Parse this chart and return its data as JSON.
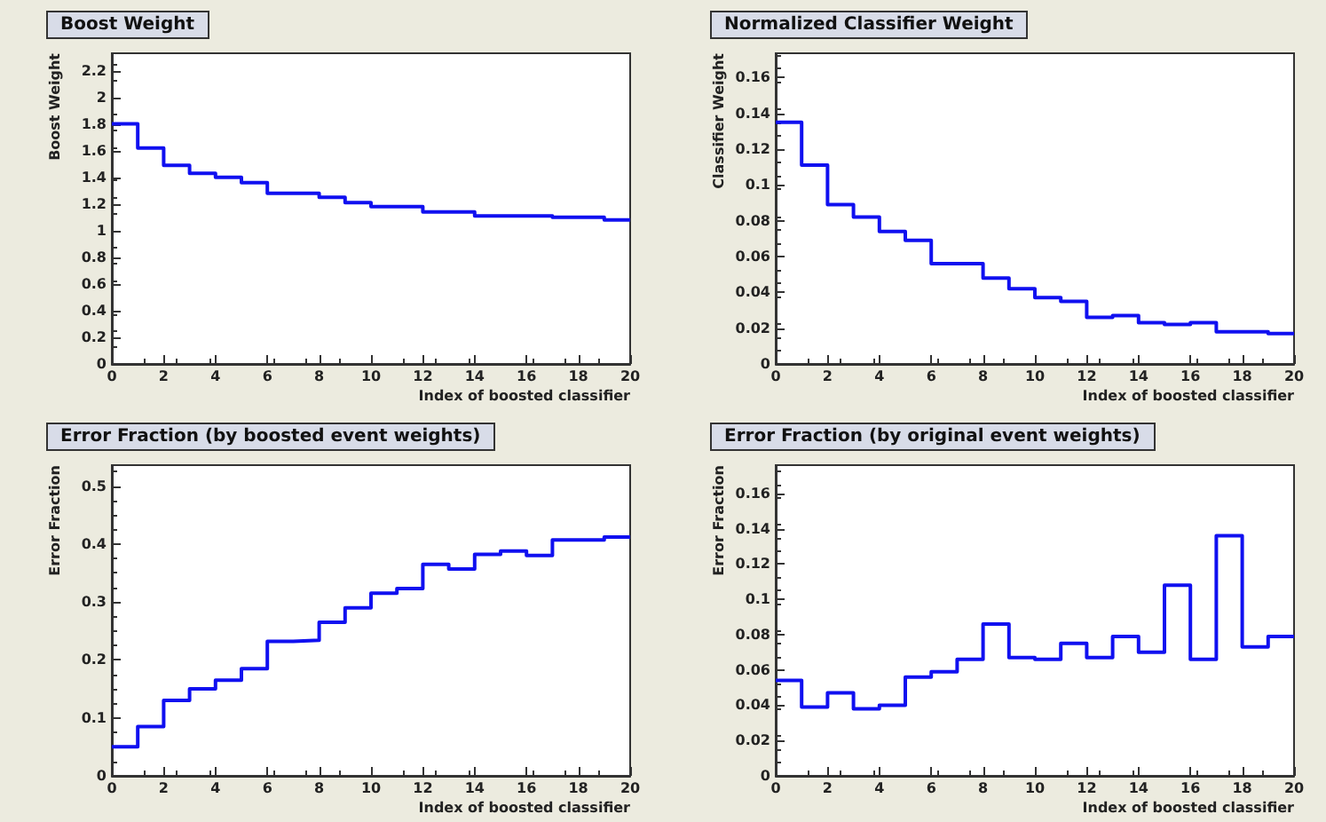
{
  "chart_data": [
    {
      "type": "histogram",
      "title": "Boost Weight",
      "ylabel": "Boost Weight",
      "xlabel": "Index of boosted classifier",
      "color": "#1010f0",
      "bins": [
        0,
        1,
        2,
        3,
        4,
        5,
        6,
        7,
        8,
        9,
        10,
        11,
        12,
        13,
        14,
        15,
        16,
        17,
        18,
        19,
        20
      ],
      "values": [
        1.8,
        1.62,
        1.49,
        1.43,
        1.4,
        1.36,
        1.28,
        1.28,
        1.25,
        1.21,
        1.18,
        1.18,
        1.14,
        1.14,
        1.11,
        1.11,
        1.11,
        1.1,
        1.1,
        1.08
      ],
      "xlim": [
        0,
        20
      ],
      "xticks": [
        0,
        2,
        4,
        6,
        8,
        10,
        12,
        14,
        16,
        18,
        20
      ],
      "ylim": [
        0,
        2.33
      ],
      "yticks": [
        0,
        0.2,
        0.4,
        0.6,
        0.8,
        1,
        1.2,
        1.4,
        1.6,
        1.8,
        2,
        2.2
      ]
    },
    {
      "type": "histogram",
      "title": "Normalized Classifier Weight",
      "ylabel": "Classifier Weight",
      "xlabel": "Index of boosted classifier",
      "color": "#1010f0",
      "bins": [
        0,
        1,
        2,
        3,
        4,
        5,
        6,
        7,
        8,
        9,
        10,
        11,
        12,
        13,
        14,
        15,
        16,
        17,
        18,
        19,
        20
      ],
      "values": [
        0.135,
        0.111,
        0.089,
        0.082,
        0.074,
        0.069,
        0.056,
        0.056,
        0.048,
        0.042,
        0.037,
        0.035,
        0.026,
        0.027,
        0.023,
        0.022,
        0.023,
        0.018,
        0.018,
        0.017
      ],
      "xlim": [
        0,
        20
      ],
      "xticks": [
        0,
        2,
        4,
        6,
        8,
        10,
        12,
        14,
        16,
        18,
        20
      ],
      "ylim": [
        0,
        0.1735
      ],
      "yticks": [
        0,
        0.02,
        0.04,
        0.06,
        0.08,
        0.1,
        0.12,
        0.14,
        0.16
      ]
    },
    {
      "type": "histogram",
      "title": "Error Fraction (by boosted event weights)",
      "ylabel": "Error Fraction",
      "xlabel": "Index of boosted classifier",
      "color": "#1010f0",
      "bins": [
        0,
        1,
        2,
        3,
        4,
        5,
        6,
        7,
        8,
        9,
        10,
        11,
        12,
        13,
        14,
        15,
        16,
        17,
        18,
        19,
        20
      ],
      "values": [
        0.05,
        0.085,
        0.13,
        0.15,
        0.165,
        0.185,
        0.232,
        0.234,
        0.265,
        0.29,
        0.315,
        0.323,
        0.365,
        0.357,
        0.382,
        0.388,
        0.38,
        0.407,
        0.407,
        0.412
      ],
      "xlim": [
        0,
        20
      ],
      "xticks": [
        0,
        2,
        4,
        6,
        8,
        10,
        12,
        14,
        16,
        18,
        20
      ],
      "ylim": [
        0,
        0.536
      ],
      "yticks": [
        0,
        0.1,
        0.2,
        0.3,
        0.4,
        0.5
      ]
    },
    {
      "type": "histogram",
      "title": "Error Fraction (by original event weights)",
      "ylabel": "Error Fraction",
      "xlabel": "Index of boosted classifier",
      "color": "#1010f0",
      "bins": [
        0,
        1,
        2,
        3,
        4,
        5,
        6,
        7,
        8,
        9,
        10,
        11,
        12,
        13,
        14,
        15,
        16,
        17,
        18,
        19,
        20
      ],
      "values": [
        0.054,
        0.039,
        0.047,
        0.038,
        0.04,
        0.056,
        0.059,
        0.066,
        0.086,
        0.067,
        0.066,
        0.075,
        0.067,
        0.079,
        0.07,
        0.108,
        0.066,
        0.136,
        0.073,
        0.079
      ],
      "xlim": [
        0,
        20
      ],
      "xticks": [
        0,
        2,
        4,
        6,
        8,
        10,
        12,
        14,
        16,
        18,
        20
      ],
      "ylim": [
        0,
        0.176
      ],
      "yticks": [
        0,
        0.02,
        0.04,
        0.06,
        0.08,
        0.1,
        0.12,
        0.14,
        0.16
      ]
    }
  ]
}
